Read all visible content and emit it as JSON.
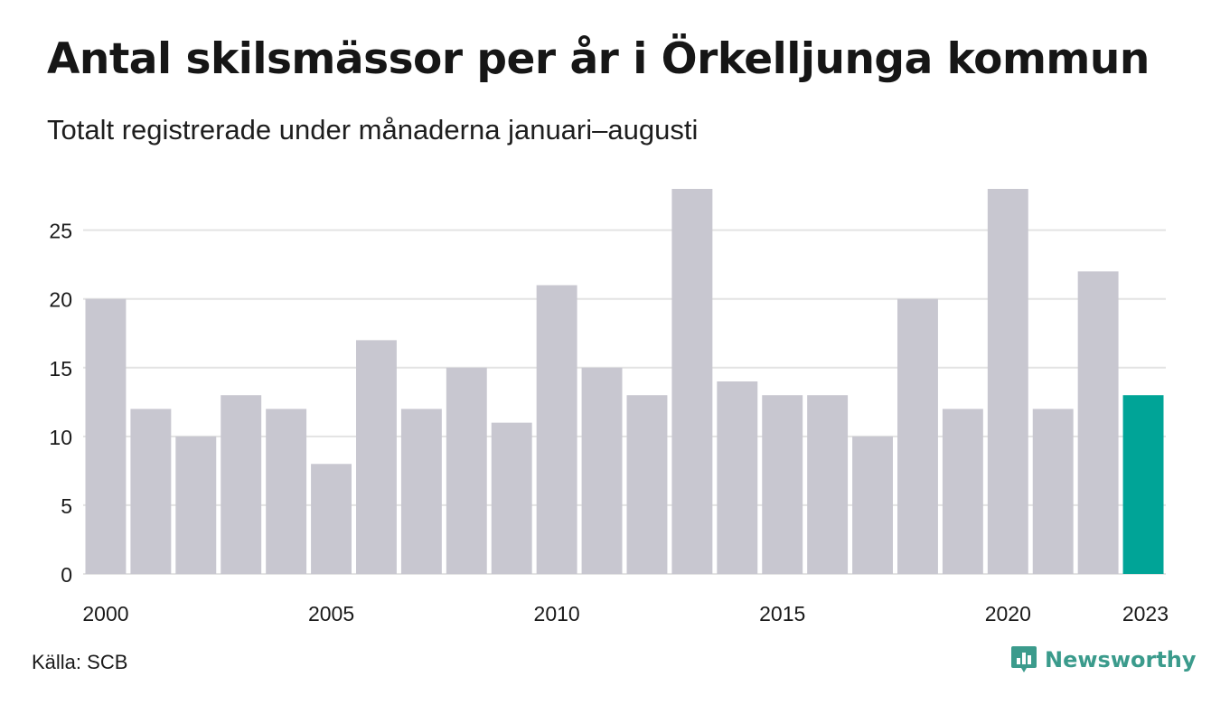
{
  "title": "Antal skilsmässor per år i Örkelljunga kommun",
  "subtitle": "Totalt registrerade under månaderna januari–augusti",
  "source": "Källa: SCB",
  "brand": {
    "name": "Newsworthy",
    "icon": "newsworthy-logo-icon"
  },
  "colors": {
    "bar": "#c8c7d0",
    "highlight": "#00a497",
    "grid": "#e3e3e3",
    "brand": "#3b9b8c"
  },
  "chart_data": {
    "type": "bar",
    "categories": [
      "2000",
      "2001",
      "2002",
      "2003",
      "2004",
      "2005",
      "2006",
      "2007",
      "2008",
      "2009",
      "2010",
      "2011",
      "2012",
      "2013",
      "2014",
      "2015",
      "2016",
      "2017",
      "2018",
      "2019",
      "2020",
      "2021",
      "2022",
      "2023"
    ],
    "values": [
      20,
      12,
      10,
      13,
      12,
      8,
      17,
      12,
      15,
      11,
      21,
      15,
      13,
      28,
      14,
      13,
      13,
      10,
      20,
      12,
      28,
      12,
      22,
      13
    ],
    "highlight_category": "2023",
    "ylim": [
      0,
      28
    ],
    "yticks": [
      0,
      5,
      10,
      15,
      20,
      25
    ],
    "xtick_labels": [
      "2000",
      "2005",
      "2010",
      "2015",
      "2020",
      "2023"
    ],
    "grid": true,
    "title": "Antal skilsmässor per år i Örkelljunga kommun",
    "subtitle": "Totalt registrerade under månaderna januari–augusti",
    "xlabel": "",
    "ylabel": ""
  }
}
